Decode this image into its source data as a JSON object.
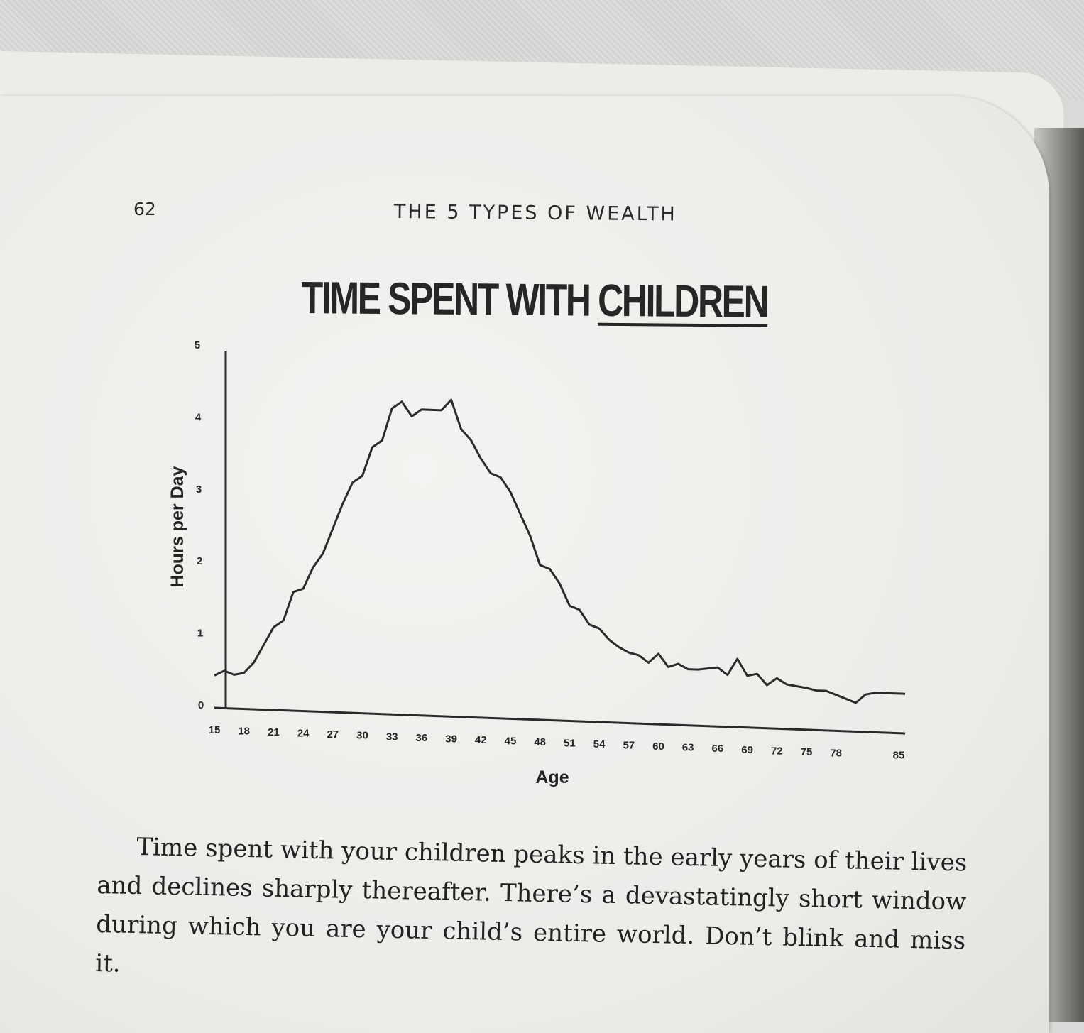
{
  "page": {
    "page_number": "62",
    "running_head": "THE 5 TYPES OF WEALTH",
    "body_text": "Time spent with your children peaks in the early years of their lives and declines sharply thereafter. There’s a devastatingly short window during which you are your child’s entire world. Don’t blink and miss it."
  },
  "chart_data": {
    "type": "line",
    "title": "TIME SPENT WITH CHILDREN",
    "title_parts": [
      "TIME SPENT WITH ",
      "CHILDREN"
    ],
    "xlabel": "Age",
    "ylabel": "Hours per Day",
    "ylim": [
      0,
      5
    ],
    "xlim": [
      15,
      85
    ],
    "y_ticks": [
      "0",
      "1",
      "2",
      "3",
      "4",
      "5"
    ],
    "x_ticks": [
      "15",
      "18",
      "21",
      "24",
      "27",
      "30",
      "33",
      "36",
      "39",
      "42",
      "45",
      "48",
      "51",
      "54",
      "57",
      "60",
      "63",
      "66",
      "69",
      "72",
      "75",
      "78",
      "85"
    ],
    "grid": false,
    "line_color": "#2b2b2b",
    "series": [
      {
        "x": [
          15,
          16,
          17,
          18,
          19,
          20,
          21,
          22,
          23,
          24,
          25,
          26,
          27,
          28,
          29,
          30,
          31,
          32,
          33,
          34,
          35,
          36,
          37,
          38,
          39,
          40,
          41,
          42,
          43,
          44,
          45,
          46,
          47,
          48,
          49,
          50,
          51,
          52,
          53,
          54,
          55,
          56,
          57,
          58,
          59,
          60,
          61,
          62,
          63,
          64,
          65,
          66,
          67,
          68,
          69,
          70,
          71,
          72,
          73,
          74,
          75,
          76,
          77,
          78,
          79,
          80,
          81,
          82,
          83,
          84,
          85
        ],
        "values": [
          0.45,
          0.52,
          0.47,
          0.5,
          0.65,
          0.9,
          1.15,
          1.25,
          1.65,
          1.7,
          2.0,
          2.2,
          2.55,
          2.9,
          3.2,
          3.3,
          3.7,
          3.8,
          4.25,
          4.35,
          4.15,
          4.25,
          4.25,
          4.25,
          4.4,
          4.0,
          3.85,
          3.6,
          3.4,
          3.35,
          3.15,
          2.85,
          2.55,
          2.15,
          2.1,
          1.9,
          1.6,
          1.55,
          1.35,
          1.3,
          1.15,
          1.05,
          0.98,
          0.95,
          0.85,
          0.98,
          0.8,
          0.85,
          0.78,
          0.78,
          0.8,
          0.82,
          0.72,
          0.95,
          0.72,
          0.75,
          0.6,
          0.7,
          0.62,
          0.6,
          0.58,
          0.55,
          0.55,
          0.5,
          0.45,
          0.4,
          0.52,
          0.55,
          0.55,
          0.55,
          0.55
        ]
      }
    ]
  }
}
